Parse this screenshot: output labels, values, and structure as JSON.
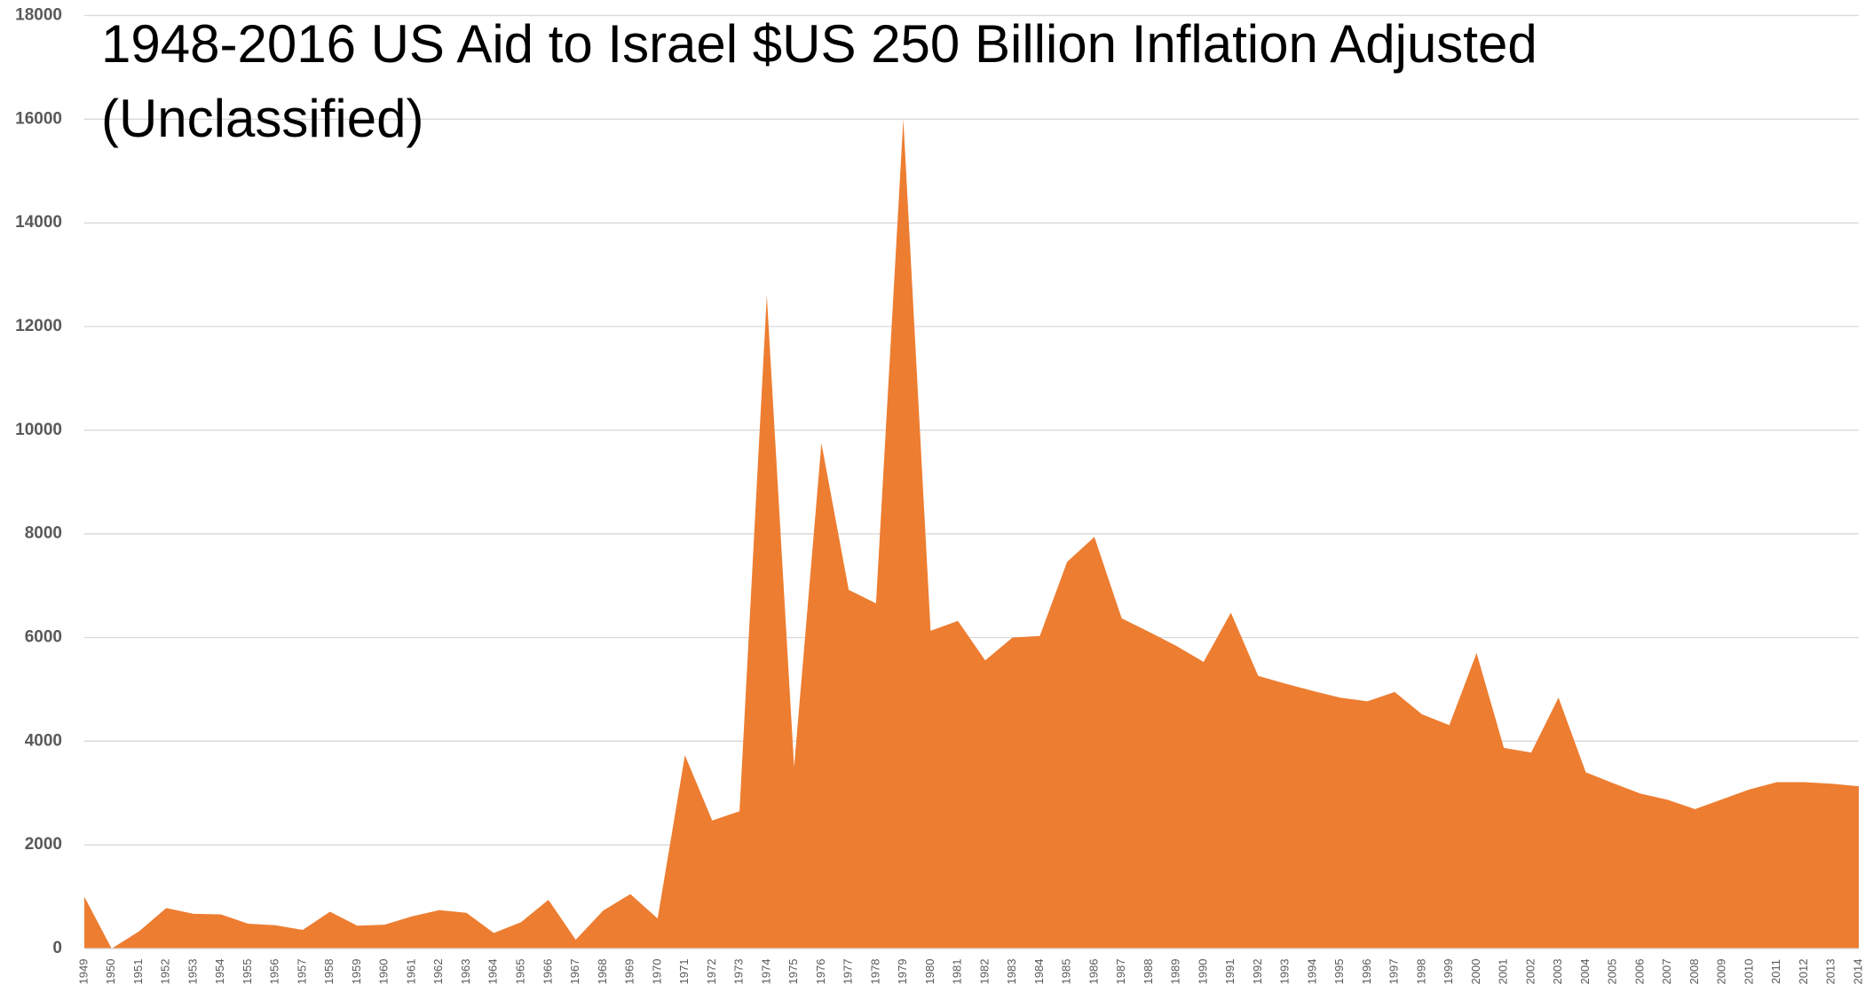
{
  "chart_data": {
    "type": "area",
    "title": "1948-2016 US Aid to Israel $US 250 Billion Inflation Adjusted (Unclassified)",
    "categories": [
      "1949",
      "1950",
      "1951",
      "1952",
      "1953",
      "1954",
      "1955",
      "1956",
      "1957",
      "1958",
      "1959",
      "1960",
      "1961",
      "1962",
      "1963",
      "1964",
      "1965",
      "1966",
      "1967",
      "1968",
      "1969",
      "1970",
      "1971",
      "1972",
      "1973",
      "1974",
      "1975",
      "1976",
      "1977",
      "1978",
      "1979",
      "1980",
      "1981",
      "1982",
      "1983",
      "1984",
      "1985",
      "1986",
      "1987",
      "1988",
      "1989",
      "1990",
      "1991",
      "1992",
      "1993",
      "1994",
      "1995",
      "1996",
      "1997",
      "1998",
      "1999",
      "2000",
      "2001",
      "2002",
      "2003",
      "2004",
      "2005",
      "2006",
      "2007",
      "2008",
      "2009",
      "2010",
      "2011",
      "2012",
      "2013",
      "2014"
    ],
    "values": [
      1000,
      0,
      330,
      780,
      670,
      660,
      480,
      450,
      360,
      710,
      440,
      460,
      620,
      740,
      690,
      300,
      510,
      940,
      170,
      730,
      1050,
      580,
      3730,
      2470,
      2650,
      12600,
      3500,
      9750,
      6920,
      6660,
      16000,
      6130,
      6320,
      5560,
      6000,
      6030,
      7460,
      7940,
      6370,
      6110,
      5840,
      5530,
      6480,
      5260,
      5110,
      4970,
      4840,
      4770,
      4950,
      4520,
      4310,
      5700,
      3870,
      3780,
      4840,
      3400,
      3190,
      2990,
      2870,
      2690,
      2880,
      3070,
      3210,
      3210,
      3180,
      3130
    ],
    "color": "#ed7d31",
    "ylim": [
      0,
      18000
    ],
    "yticks": [
      0,
      2000,
      4000,
      6000,
      8000,
      10000,
      12000,
      14000,
      16000,
      18000
    ],
    "grid": true
  }
}
